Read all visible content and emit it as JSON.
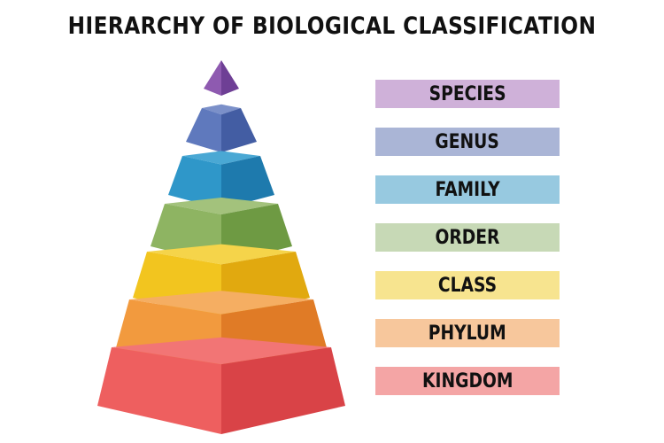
{
  "title": "HIERARCHY OF BIOLOGICAL CLASSIFICATION",
  "levels": [
    {
      "label": "SPECIES",
      "label_bg": "#cfb1d9",
      "light": "#8e5ab0",
      "dark": "#6e3f95",
      "rim": "#9b6bbd"
    },
    {
      "label": "GENUS",
      "label_bg": "#aab5d6",
      "light": "#5f79bd",
      "dark": "#435da3",
      "rim": "#7b90c9"
    },
    {
      "label": "FAMILY",
      "label_bg": "#97c9e0",
      "light": "#2f97c9",
      "dark": "#1e7aad",
      "rim": "#4aa8d4"
    },
    {
      "label": "ORDER",
      "label_bg": "#c7d9b6",
      "light": "#8eb462",
      "dark": "#6e9a43",
      "rim": "#a3c27c"
    },
    {
      "label": "CLASS",
      "label_bg": "#f7e48f",
      "light": "#f2c51f",
      "dark": "#e1a90f",
      "rim": "#f5d44a"
    },
    {
      "label": "PHYLUM",
      "label_bg": "#f7c79c",
      "light": "#f29a3e",
      "dark": "#e07b26",
      "rim": "#f5ae62"
    },
    {
      "label": "KINGDOM",
      "label_bg": "#f4a5a5",
      "light": "#ee5f5f",
      "dark": "#d94347",
      "rim": "#f27575"
    }
  ]
}
